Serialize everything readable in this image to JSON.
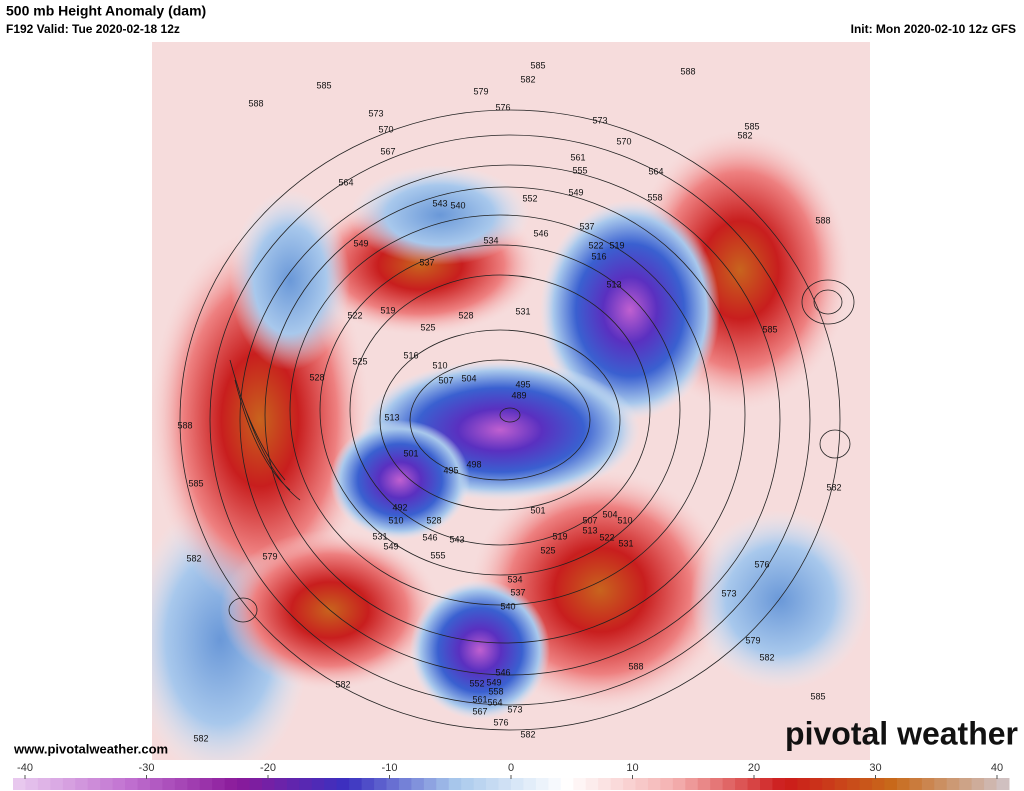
{
  "header": {
    "title": "500 mb Height Anomaly (dam)",
    "valid": "F192 Valid: Tue 2020-02-18 12z",
    "init": "Init: Mon 2020-02-10 12z GFS"
  },
  "footer": {
    "website": "www.pivotalweather.com",
    "logo": "pivotal weather"
  },
  "colorbar": {
    "range": [
      -40,
      40
    ],
    "ticks": [
      -40,
      -30,
      -20,
      -10,
      0,
      10,
      20,
      30,
      40
    ],
    "colors": [
      "#e8c8ee",
      "#c070d0",
      "#8a1a9a",
      "#3a30c0",
      "#a8c8ec",
      "#ffffff",
      "#f4b0b0",
      "#cc1a1a",
      "#c86a1a",
      "#d0c0c0"
    ]
  },
  "contour_labels": [
    585,
    582,
    588,
    588,
    585,
    579,
    576,
    573,
    570,
    573,
    570,
    582,
    585,
    567,
    561,
    555,
    564,
    558,
    564,
    549,
    552,
    543,
    540,
    534,
    546,
    537,
    522,
    519,
    516,
    513,
    549,
    537,
    588,
    585,
    528,
    525,
    519,
    522,
    531,
    516,
    510,
    507,
    504,
    495,
    489,
    525,
    528,
    588,
    585,
    513,
    501,
    495,
    498,
    492,
    510,
    531,
    549,
    528,
    546,
    543,
    555,
    582,
    576,
    573,
    579,
    582,
    585,
    588,
    579,
    582,
    582,
    582,
    501,
    507,
    504,
    510,
    513,
    519,
    522,
    525,
    531,
    534,
    537,
    540,
    552,
    549,
    546,
    558,
    561,
    564,
    567,
    573,
    576,
    582
  ]
}
